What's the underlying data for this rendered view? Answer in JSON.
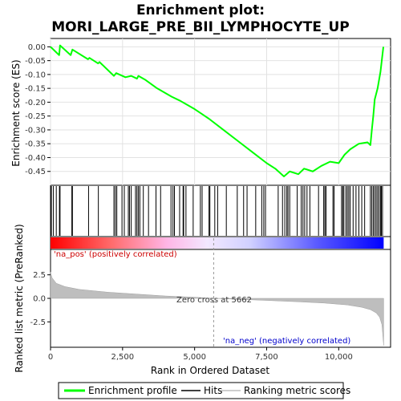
{
  "chart_data": {
    "type": "line",
    "title": "Enrichment plot:",
    "subtitle": "MORI_LARGE_PRE_BII_LYMPHOCYTE_UP",
    "ylabel_top": "Enrichment score (ES)",
    "ylabel_bottom": "Ranked list metric (PreRanked)",
    "xlabel": "Rank in Ordered Dataset",
    "xlim": [
      0,
      11800
    ],
    "ylim_top": [
      -0.5,
      0.03
    ],
    "ylim_bottom": [
      -5.2,
      5.2
    ],
    "x_ticks": [
      {
        "value": 0,
        "label": "0"
      },
      {
        "value": 2500,
        "label": "2,500"
      },
      {
        "value": 5000,
        "label": "5,000"
      },
      {
        "value": 7500,
        "label": "7,500"
      },
      {
        "value": 10000,
        "label": "10,000"
      }
    ],
    "y_ticks_top": [
      {
        "value": 0.0,
        "label": "0.00"
      },
      {
        "value": -0.05,
        "label": "-0.05"
      },
      {
        "value": -0.1,
        "label": "-0.10"
      },
      {
        "value": -0.15,
        "label": "-0.15"
      },
      {
        "value": -0.2,
        "label": "-0.20"
      },
      {
        "value": -0.25,
        "label": "-0.25"
      },
      {
        "value": -0.3,
        "label": "-0.30"
      },
      {
        "value": -0.35,
        "label": "-0.35"
      },
      {
        "value": -0.4,
        "label": "-0.40"
      },
      {
        "value": -0.45,
        "label": "-0.45"
      }
    ],
    "y_ticks_bottom": [
      {
        "value": 2.5,
        "label": "2.5"
      },
      {
        "value": 0.0,
        "label": "0.0"
      },
      {
        "value": -2.5,
        "label": "-2.5"
      }
    ],
    "es_curve": [
      [
        0,
        0.0
      ],
      [
        300,
        -0.03
      ],
      [
        330,
        0.005
      ],
      [
        700,
        -0.03
      ],
      [
        760,
        -0.01
      ],
      [
        1300,
        -0.045
      ],
      [
        1350,
        -0.04
      ],
      [
        1650,
        -0.06
      ],
      [
        1700,
        -0.055
      ],
      [
        2200,
        -0.105
      ],
      [
        2280,
        -0.095
      ],
      [
        2600,
        -0.11
      ],
      [
        2800,
        -0.105
      ],
      [
        3000,
        -0.115
      ],
      [
        3050,
        -0.105
      ],
      [
        3300,
        -0.12
      ],
      [
        3700,
        -0.15
      ],
      [
        4200,
        -0.18
      ],
      [
        4500,
        -0.195
      ],
      [
        5000,
        -0.225
      ],
      [
        5500,
        -0.26
      ],
      [
        6000,
        -0.3
      ],
      [
        6500,
        -0.34
      ],
      [
        7000,
        -0.38
      ],
      [
        7500,
        -0.42
      ],
      [
        7800,
        -0.44
      ],
      [
        8100,
        -0.468
      ],
      [
        8300,
        -0.45
      ],
      [
        8600,
        -0.46
      ],
      [
        8800,
        -0.44
      ],
      [
        9100,
        -0.45
      ],
      [
        9400,
        -0.43
      ],
      [
        9700,
        -0.415
      ],
      [
        10000,
        -0.42
      ],
      [
        10200,
        -0.39
      ],
      [
        10400,
        -0.37
      ],
      [
        10700,
        -0.35
      ],
      [
        11000,
        -0.345
      ],
      [
        11100,
        -0.355
      ],
      [
        11150,
        -0.3
      ],
      [
        11200,
        -0.25
      ],
      [
        11250,
        -0.19
      ],
      [
        11350,
        -0.15
      ],
      [
        11450,
        -0.09
      ],
      [
        11550,
        0.0
      ]
    ],
    "hits": [
      30,
      100,
      200,
      310,
      330,
      740,
      760,
      1320,
      1660,
      2200,
      2250,
      2300,
      2480,
      2560,
      2700,
      2740,
      2800,
      2950,
      3000,
      3050,
      3100,
      3220,
      3400,
      3660,
      3820,
      4180,
      4250,
      4300,
      4480,
      4600,
      4620,
      4700,
      4950,
      5200,
      5260,
      5500,
      5530,
      5700,
      5800,
      6100,
      6480,
      6700,
      6820,
      7120,
      7330,
      7400,
      7460,
      7900,
      8050,
      8130,
      8200,
      8240,
      8300,
      8560,
      8700,
      8760,
      8820,
      8900,
      9000,
      9300,
      9480,
      9520,
      9560,
      9800,
      9840,
      10100,
      10140,
      10180,
      10250,
      10300,
      10350,
      10400,
      10500,
      10600,
      10700,
      10800,
      10900,
      11100,
      11150,
      11200,
      11250,
      11300,
      11350,
      11400,
      11450,
      11480,
      11520
    ],
    "zero_cross_value": 5662,
    "metric_curve": [
      [
        0,
        2.8
      ],
      [
        50,
        2.2
      ],
      [
        200,
        1.6
      ],
      [
        500,
        1.25
      ],
      [
        1000,
        0.95
      ],
      [
        2000,
        0.65
      ],
      [
        3000,
        0.45
      ],
      [
        4000,
        0.25
      ],
      [
        5000,
        0.12
      ],
      [
        5662,
        0.0
      ],
      [
        6500,
        -0.1
      ],
      [
        7500,
        -0.22
      ],
      [
        8500,
        -0.35
      ],
      [
        9500,
        -0.5
      ],
      [
        10300,
        -0.7
      ],
      [
        10800,
        -0.95
      ],
      [
        11100,
        -1.2
      ],
      [
        11300,
        -1.55
      ],
      [
        11420,
        -2.0
      ],
      [
        11500,
        -2.8
      ],
      [
        11560,
        -5.0
      ]
    ],
    "colors": {
      "es_line": "#00ff00",
      "hit": "#000000",
      "metric_fill": "#bebebe",
      "pos_label": "#cc0000",
      "neg_label": "#0000cc",
      "band_pos": "#ff0000",
      "band_neg": "#0000ff"
    }
  },
  "annotations": {
    "pos_label": "'na_pos' (positively correlated)",
    "neg_label": "'na_neg' (negatively correlated)",
    "zero_cross": "Zero cross at 5662"
  },
  "legend": {
    "items": [
      {
        "label": "Enrichment profile",
        "color": "#00ff00"
      },
      {
        "label": "Hits",
        "color": "#000000"
      },
      {
        "label": "Ranking metric scores",
        "color": "#bebebe"
      }
    ]
  }
}
